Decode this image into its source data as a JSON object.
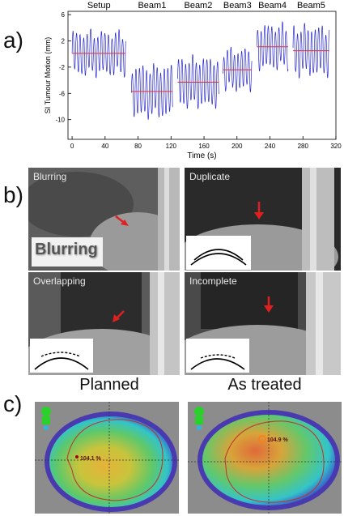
{
  "panel_letters": {
    "a": "a)",
    "b": "b)",
    "c": "c)"
  },
  "chart_data": {
    "type": "line",
    "xlabel": "Time (s)",
    "ylabel": "SI Tumour Motion (mm)",
    "xlim": [
      -5,
      320
    ],
    "ylim": [
      -13,
      6.5
    ],
    "xticks": [
      0,
      40,
      80,
      120,
      160,
      200,
      240,
      280,
      320
    ],
    "yticks": [
      -10,
      -6,
      -2,
      2,
      6
    ],
    "grid": false,
    "segments": [
      {
        "name": "Setup",
        "x_start": 0,
        "x_end": 65,
        "mean": 0.1,
        "amplitude": 3.2
      },
      {
        "name": "Beam1",
        "x_start": 72,
        "x_end": 122,
        "mean": -5.7,
        "amplitude": 3.8
      },
      {
        "name": "Beam2",
        "x_start": 128,
        "x_end": 178,
        "mean": -4.3,
        "amplitude": 3.6
      },
      {
        "name": "Beam3",
        "x_start": 183,
        "x_end": 218,
        "mean": -2.4,
        "amplitude": 3.0
      },
      {
        "name": "Beam4",
        "x_start": 224,
        "x_end": 262,
        "mean": 1.1,
        "amplitude": 3.2
      },
      {
        "name": "Beam5",
        "x_start": 268,
        "x_end": 312,
        "mean": 0.5,
        "amplitude": 3.6
      }
    ],
    "colors": {
      "trace": "#2a2acc",
      "mean_line": "#e0303a"
    }
  },
  "ct_panels": [
    {
      "label": "Blurring",
      "inset_text": "Blurring"
    },
    {
      "label": "Duplicate"
    },
    {
      "label": "Overlapping"
    },
    {
      "label": "Incomplete"
    }
  ],
  "dose_maps": [
    {
      "title": "Planned",
      "max_label": "104.1 %"
    },
    {
      "title": "As treated",
      "max_label": "104.9 %"
    }
  ]
}
